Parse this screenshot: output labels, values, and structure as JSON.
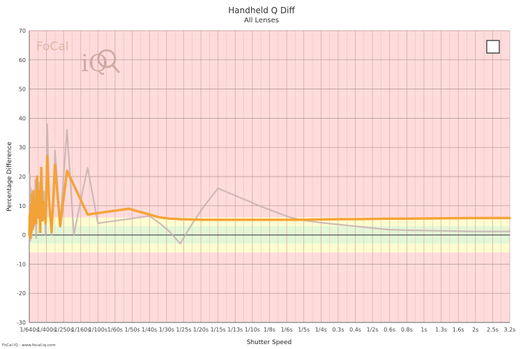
{
  "chart_data": {
    "type": "line",
    "title": "Handheld Q Diff",
    "subtitle": "All Lenses",
    "xlabel": "Shutter Speed",
    "ylabel": "Percentage Difference",
    "ylim": [
      -30,
      70
    ],
    "yticks": [
      -30,
      -20,
      -10,
      0,
      10,
      20,
      30,
      40,
      50,
      60,
      70
    ],
    "grid": true,
    "categories": [
      "1/640s",
      "1/400s",
      "1/250s",
      "1/160s",
      "1/100s",
      "1/60s",
      "1/50s",
      "1/40s",
      "1/30s",
      "1/25s",
      "1/20s",
      "1/15s",
      "1/13s",
      "1/10s",
      "1/8s",
      "1/6s",
      "1/5s",
      "1/4s",
      "0.3s",
      "0.4s",
      "1/2s",
      "0.6s",
      "0.8s",
      "1s",
      "1.3s",
      "1.6s",
      "2s",
      "2.5s",
      "3.2s"
    ],
    "bands": [
      {
        "from": -6,
        "to": 6,
        "color": "#fdfdd0"
      },
      {
        "from": -3,
        "to": 3,
        "color": "#e3f7d6"
      }
    ],
    "background_color": "#ffdcdc",
    "series": [
      {
        "color": "#c8b0b0",
        "x": [
          0,
          0.03,
          0.06,
          0.09,
          0.13,
          0.16,
          0.2,
          0.25,
          0.3,
          0.35,
          0.4,
          0.46,
          0.52,
          0.58,
          0.64,
          0.7,
          0.78,
          0.86,
          0.95,
          1.05,
          1.15,
          1.3,
          1.5,
          1.8,
          2.2,
          2.6,
          3,
          3.4,
          4,
          4.6,
          5.2,
          5.8,
          6.4,
          7,
          7.6,
          8.2,
          8.8,
          9.4,
          10.2,
          11,
          11.8,
          12.6,
          13.4,
          14.3,
          15.2,
          16,
          17,
          18,
          19,
          20,
          21,
          22,
          24,
          26,
          28
        ],
        "values": [
          -5,
          21,
          -2,
          16,
          -1,
          15,
          2,
          12,
          3,
          19,
          -1,
          20,
          8,
          18,
          1,
          22,
          5,
          15,
          0,
          38,
          14,
          0,
          29,
          4,
          36,
          0,
          12,
          23,
          4,
          4.5,
          5,
          5.5,
          6,
          6.5,
          4,
          1,
          -3,
          3,
          10,
          16,
          14,
          12,
          10,
          8,
          6,
          5,
          4.2,
          3.6,
          3,
          2.4,
          1.8,
          1.6,
          1.4,
          1.2,
          1.2
        ]
      },
      {
        "color": "#f3a02e",
        "x": [
          0,
          0.03,
          0.06,
          0.09,
          0.13,
          0.16,
          0.2,
          0.25,
          0.3,
          0.35,
          0.4,
          0.46,
          0.52,
          0.58,
          0.64,
          0.7,
          0.78,
          0.86,
          0.95,
          1.05,
          1.15,
          1.3,
          1.5,
          1.8,
          2.2,
          2.6,
          3,
          3.4,
          4,
          4.6,
          5.2,
          5.8,
          6.4,
          7,
          7.6,
          8.2,
          8.8,
          9.4,
          10.2,
          11,
          11.8,
          12.6,
          13.4,
          14.3,
          15.2,
          16,
          17,
          18,
          19,
          20,
          21,
          22,
          24,
          26,
          28
        ],
        "values": [
          0,
          7,
          -1,
          10,
          1,
          14,
          2,
          15,
          4,
          8,
          4,
          20,
          6,
          15,
          1,
          23,
          5,
          11,
          4,
          27,
          12,
          1,
          24,
          3,
          22,
          17,
          12,
          7,
          7.5,
          8,
          8.5,
          9,
          8,
          7,
          6,
          5.6,
          5.4,
          5.3,
          5.2,
          5.2,
          5.2,
          5.2,
          5.2,
          5.2,
          5.2,
          5.2,
          5.3,
          5.4,
          5.4,
          5.5,
          5.6,
          5.6,
          5.7,
          5.8,
          5.8
        ]
      }
    ]
  },
  "footer_text": "FoCal IQ - www.focal-iq.com",
  "logo": {
    "focal": "FoCal",
    "iq": "iQ"
  }
}
